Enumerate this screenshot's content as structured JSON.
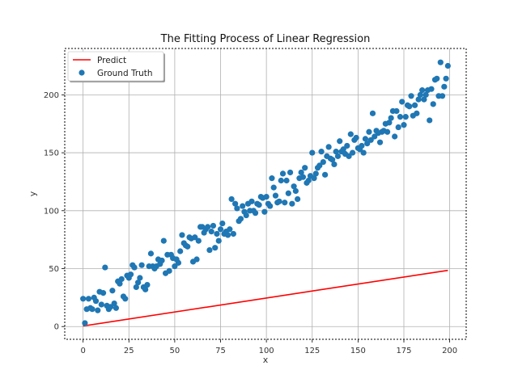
{
  "chart_data": {
    "type": "scatter",
    "title": "The Fitting Process of Linear Regression",
    "xlabel": "x",
    "ylabel": "y",
    "xlim": [
      -10,
      209
    ],
    "ylim": [
      -11,
      240
    ],
    "xticks": [
      0,
      25,
      50,
      75,
      100,
      125,
      150,
      175,
      200
    ],
    "yticks": [
      0,
      50,
      100,
      150,
      200
    ],
    "grid": true,
    "legend": {
      "placement": "top-left",
      "entries": [
        {
          "name": "Predict",
          "type": "line",
          "color": "#ff0000"
        },
        {
          "name": "Ground Truth",
          "type": "scatter",
          "color": "#1f77b4"
        }
      ]
    },
    "series": [
      {
        "name": "Predict",
        "type": "line",
        "color": "#ff0000",
        "x": [
          0,
          199
        ],
        "y": [
          0.5,
          48.5
        ]
      },
      {
        "name": "Ground Truth",
        "type": "scatter",
        "color": "#1f77b4",
        "x": [
          0,
          1,
          2,
          3,
          4,
          5,
          6,
          7,
          8,
          9,
          10,
          11,
          12,
          13,
          14,
          15,
          16,
          17,
          18,
          19,
          20,
          21,
          22,
          23,
          24,
          25,
          26,
          27,
          28,
          29,
          30,
          31,
          32,
          33,
          34,
          35,
          36,
          37,
          38,
          39,
          40,
          41,
          42,
          43,
          44,
          45,
          46,
          47,
          48,
          49,
          50,
          51,
          52,
          53,
          54,
          55,
          56,
          57,
          58,
          59,
          60,
          61,
          62,
          63,
          64,
          65,
          66,
          67,
          68,
          69,
          70,
          71,
          72,
          73,
          74,
          75,
          76,
          77,
          78,
          79,
          80,
          81,
          82,
          83,
          84,
          85,
          86,
          87,
          88,
          89,
          90,
          91,
          92,
          93,
          94,
          95,
          96,
          97,
          98,
          99,
          100,
          101,
          102,
          103,
          104,
          105,
          106,
          107,
          108,
          109,
          110,
          111,
          112,
          113,
          114,
          115,
          116,
          117,
          118,
          119,
          120,
          121,
          122,
          123,
          124,
          125,
          126,
          127,
          128,
          129,
          130,
          131,
          132,
          133,
          134,
          135,
          136,
          137,
          138,
          139,
          140,
          141,
          142,
          143,
          144,
          145,
          146,
          147,
          148,
          149,
          150,
          151,
          152,
          153,
          154,
          155,
          156,
          157,
          158,
          159,
          160,
          161,
          162,
          163,
          164,
          165,
          166,
          167,
          168,
          169,
          170,
          171,
          172,
          173,
          174,
          175,
          176,
          177,
          178,
          179,
          180,
          181,
          182,
          183,
          184,
          185,
          186,
          187,
          188,
          189,
          190,
          191,
          192,
          193,
          194,
          195,
          196,
          197,
          198,
          199
        ],
        "y": [
          24,
          3,
          15,
          24,
          16,
          15,
          25,
          22,
          14,
          30,
          19,
          29,
          51,
          18,
          15,
          17,
          31,
          20,
          16,
          39,
          37,
          41,
          26,
          24,
          44,
          42,
          45,
          53,
          51,
          34,
          38,
          42,
          53,
          34,
          32,
          36,
          52,
          63,
          52,
          50,
          52,
          58,
          54,
          57,
          74,
          46,
          62,
          48,
          62,
          59,
          52,
          58,
          55,
          65,
          79,
          72,
          70,
          69,
          77,
          76,
          56,
          77,
          58,
          74,
          86,
          86,
          81,
          84,
          86,
          66,
          82,
          87,
          68,
          80,
          74,
          84,
          89,
          80,
          82,
          79,
          84,
          110,
          80,
          106,
          102,
          91,
          93,
          104,
          99,
          96,
          106,
          100,
          108,
          100,
          98,
          106,
          105,
          112,
          111,
          99,
          112,
          106,
          104,
          128,
          120,
          113,
          107,
          108,
          126,
          132,
          107,
          126,
          115,
          133,
          106,
          121,
          117,
          110,
          128,
          133,
          129,
          137,
          124,
          126,
          130,
          150,
          128,
          132,
          137,
          139,
          151,
          142,
          131,
          147,
          155,
          145,
          144,
          140,
          151,
          147,
          160,
          151,
          153,
          149,
          156,
          147,
          166,
          150,
          161,
          163,
          154,
          153,
          156,
          150,
          162,
          158,
          168,
          161,
          184,
          164,
          169,
          167,
          159,
          168,
          169,
          175,
          168,
          176,
          180,
          186,
          164,
          186,
          172,
          181,
          194,
          174,
          181,
          191,
          190,
          199,
          182,
          191,
          184,
          196,
          200,
          204,
          196,
          200,
          204,
          178,
          205,
          192,
          213,
          214,
          199,
          228,
          199,
          207,
          214,
          225
        ]
      }
    ]
  }
}
